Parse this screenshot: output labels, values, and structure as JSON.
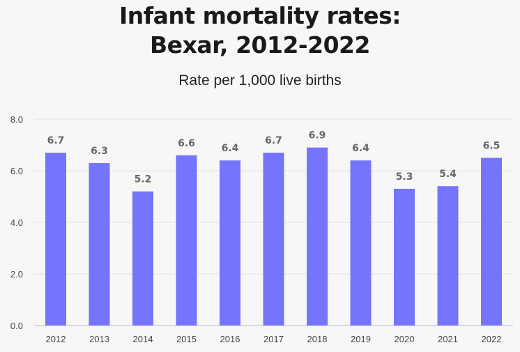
{
  "chart_data": {
    "type": "bar",
    "title_lines": [
      "Infant mortality rates:",
      "Bexar, 2012-2022"
    ],
    "subtitle": "Rate per 1,000 live births",
    "xlabel": "",
    "ylabel": "",
    "categories": [
      "2012",
      "2013",
      "2014",
      "2015",
      "2016",
      "2017",
      "2018",
      "2019",
      "2020",
      "2021",
      "2022"
    ],
    "values": [
      6.7,
      6.3,
      5.2,
      6.6,
      6.4,
      6.7,
      6.9,
      6.4,
      5.3,
      5.4,
      6.5
    ],
    "data_labels": [
      "6.7",
      "6.3",
      "5.2",
      "6.6",
      "6.4",
      "6.7",
      "6.9",
      "6.4",
      "5.3",
      "5.4",
      "6.5"
    ],
    "ylim": [
      0,
      8
    ],
    "yticks": [
      "0.0",
      "2.0",
      "4.0",
      "6.0",
      "8.0"
    ],
    "ytick_values": [
      0,
      2,
      4,
      6,
      8
    ],
    "grid": true,
    "legend": "none"
  },
  "colors": {
    "bar": "#7474fc",
    "grid": "#e2e2e2",
    "axis": "#bbbbbb",
    "background": "#f7f7f7"
  }
}
